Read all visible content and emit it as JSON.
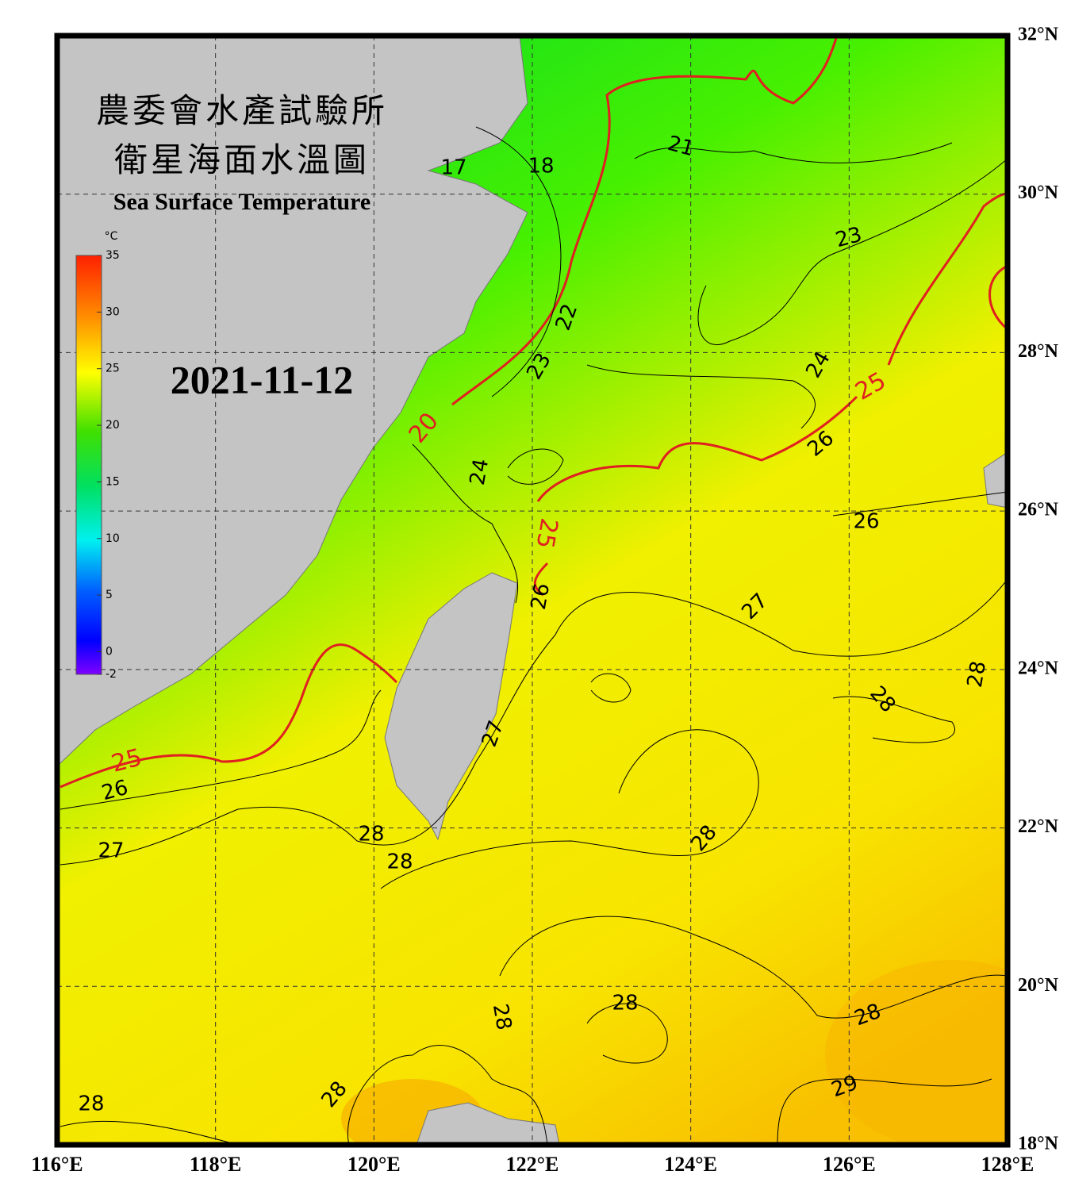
{
  "header": {
    "title_lines": [
      "農委會水產試驗所",
      "衛星海面水溫圖"
    ],
    "subtitle": "Sea Surface Temperature",
    "date": "2021-11-12"
  },
  "colorbar": {
    "unit": "°C",
    "range": [
      -2,
      35
    ],
    "ticks": [
      35,
      30,
      25,
      20,
      15,
      10,
      5,
      0,
      -2
    ]
  },
  "map": {
    "lon_range": [
      116,
      128
    ],
    "lat_range": [
      18,
      32
    ],
    "lon_ticks": [
      {
        "value": 116,
        "label": "116°E"
      },
      {
        "value": 118,
        "label": "118°E"
      },
      {
        "value": 120,
        "label": "120°E"
      },
      {
        "value": 122,
        "label": "122°E"
      },
      {
        "value": 124,
        "label": "124°E"
      },
      {
        "value": 126,
        "label": "126°E"
      },
      {
        "value": 128,
        "label": "128°E"
      }
    ],
    "lat_ticks": [
      {
        "value": 18,
        "label": "18°N"
      },
      {
        "value": 20,
        "label": "20°N"
      },
      {
        "value": 22,
        "label": "22°N"
      },
      {
        "value": 24,
        "label": "24°N"
      },
      {
        "value": 26,
        "label": "26°N"
      },
      {
        "value": 28,
        "label": "28°N"
      },
      {
        "value": 30,
        "label": "30°N"
      },
      {
        "value": 32,
        "label": "32°N"
      }
    ]
  },
  "contour_labels": [
    17,
    18,
    21,
    23,
    22,
    23,
    24,
    25,
    20,
    24,
    26,
    26,
    25,
    26,
    27,
    28,
    28,
    27,
    25,
    26,
    27,
    28,
    28,
    28,
    28,
    28,
    28,
    29,
    28,
    28
  ]
}
